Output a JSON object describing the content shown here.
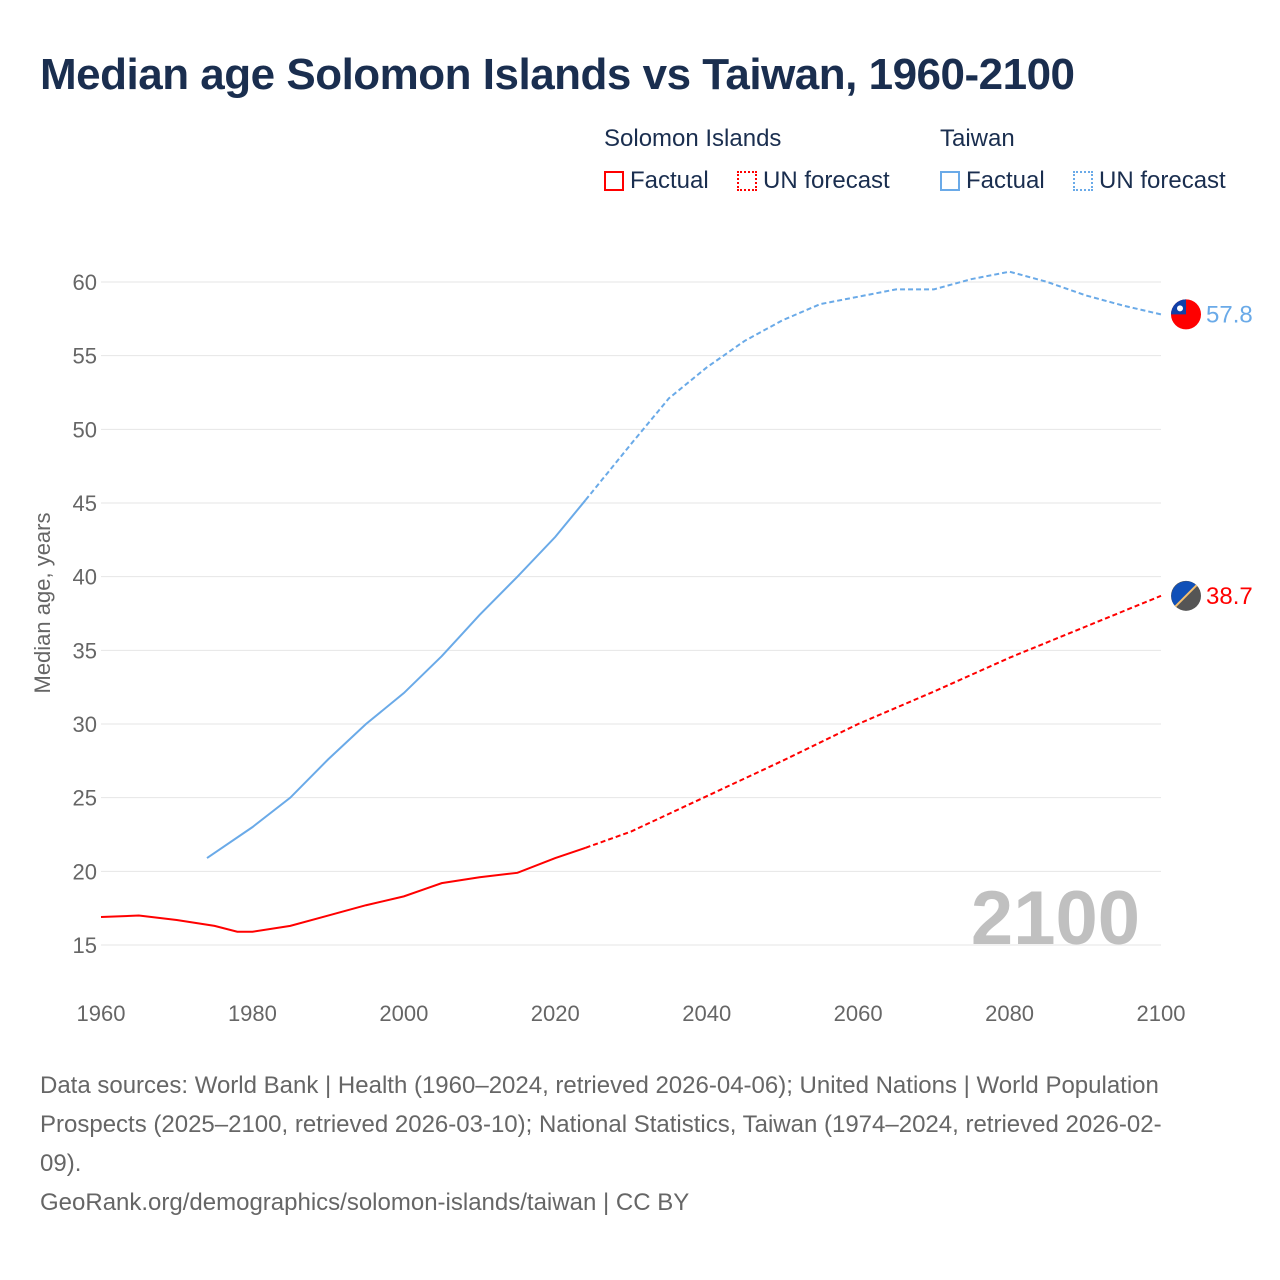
{
  "title": "Median age Solomon Islands vs Taiwan, 1960-2100",
  "legend": {
    "groups": [
      {
        "name": "Solomon Islands",
        "factual": "Factual",
        "forecast": "UN forecast",
        "color": "#ff0000"
      },
      {
        "name": "Taiwan",
        "factual": "Factual",
        "forecast": "UN forecast",
        "color": "#6aaae8"
      }
    ]
  },
  "chart_data": {
    "type": "line",
    "title": "Median age Solomon Islands vs Taiwan, 1960-2100",
    "xlabel": "",
    "ylabel": "Median age, years",
    "xlim": [
      1960,
      2100
    ],
    "ylim": [
      15,
      60
    ],
    "xticks": [
      1960,
      1980,
      2000,
      2020,
      2040,
      2060,
      2080,
      2100
    ],
    "yticks": [
      15,
      20,
      25,
      30,
      35,
      40,
      45,
      50,
      55,
      60
    ],
    "forecast_start": 2024,
    "year_label": "2100",
    "series": [
      {
        "name": "Solomon Islands",
        "color": "#ff0000",
        "end_label": "38.7",
        "x": [
          1960,
          1965,
          1970,
          1975,
          1978,
          1980,
          1985,
          1990,
          1995,
          2000,
          2005,
          2010,
          2015,
          2020,
          2024,
          2030,
          2040,
          2050,
          2060,
          2070,
          2080,
          2090,
          2100
        ],
        "y": [
          16.9,
          17.0,
          16.7,
          16.3,
          15.9,
          15.9,
          16.3,
          17.0,
          17.7,
          18.3,
          19.2,
          19.6,
          19.9,
          20.9,
          21.6,
          22.7,
          25.1,
          27.5,
          30.0,
          32.2,
          34.5,
          36.6,
          38.7
        ]
      },
      {
        "name": "Taiwan",
        "color": "#6aaae8",
        "end_label": "57.8",
        "x": [
          1974,
          1980,
          1985,
          1990,
          1995,
          2000,
          2005,
          2010,
          2015,
          2020,
          2024,
          2030,
          2035,
          2040,
          2045,
          2050,
          2055,
          2060,
          2065,
          2070,
          2075,
          2080,
          2085,
          2090,
          2095,
          2100
        ],
        "y": [
          20.9,
          23.0,
          25.0,
          27.6,
          30.0,
          32.1,
          34.6,
          37.4,
          40.0,
          42.7,
          45.2,
          49.0,
          52.1,
          54.2,
          56.0,
          57.4,
          58.5,
          59.0,
          59.5,
          59.5,
          60.2,
          60.7,
          60.0,
          59.1,
          58.4,
          57.8
        ]
      }
    ]
  },
  "footer": {
    "sources": "Data sources: World Bank | Health (1960–2024, retrieved 2026-04-06); United Nations | World Population Prospects (2025–2100, retrieved 2026-03-10); National Statistics, Taiwan (1974–2024, retrieved 2026-02-09).",
    "credit": "GeoRank.org/demographics/solomon-islands/taiwan | CC BY"
  }
}
